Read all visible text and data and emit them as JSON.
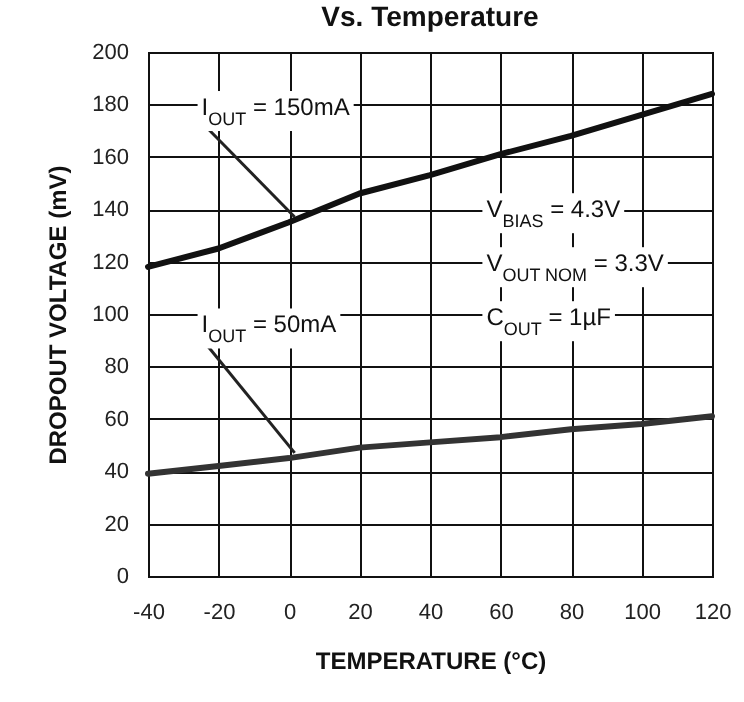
{
  "chart_data": {
    "type": "line",
    "title": "Vs. Temperature",
    "xlabel": "TEMPERATURE (°C)",
    "ylabel": "DROPOUT VOLTAGE (mV)",
    "x": [
      -40,
      -20,
      0,
      20,
      40,
      60,
      80,
      100,
      120
    ],
    "series": [
      {
        "name": "I$_{OUT}$ = 150mA",
        "color": "#111111",
        "values": [
          118,
          125,
          135,
          146,
          153,
          161,
          168,
          176,
          184
        ]
      },
      {
        "name": "I$_{OUT}$ = 50mA",
        "color": "#333333",
        "values": [
          39,
          42,
          45,
          49,
          51,
          53,
          56,
          58,
          61
        ]
      }
    ],
    "xlim": [
      -40,
      120
    ],
    "xticks": [
      -40,
      -20,
      0,
      20,
      40,
      60,
      80,
      100,
      120
    ],
    "ylim": [
      0,
      200
    ],
    "yticks": [
      0,
      20,
      40,
      60,
      80,
      100,
      120,
      140,
      160,
      180,
      200
    ],
    "grid": true,
    "legend": false,
    "marker": "none",
    "line_style": "solid",
    "annotations": [
      "V$_{BIAS}$ = 4.3V",
      "V$_{OUT NOM}$ = 3.3V",
      "C$_{OUT}$ = 1µF"
    ]
  }
}
